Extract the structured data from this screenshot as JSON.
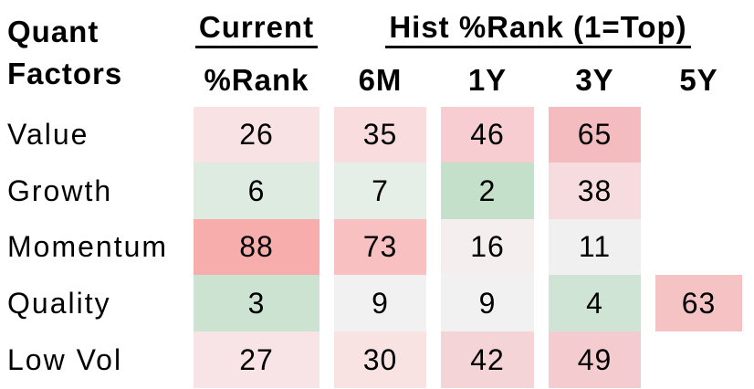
{
  "title": {
    "line1": "Quant",
    "line2": "Factors"
  },
  "chart_data": {
    "type": "heatmap",
    "title": "Quant Factors",
    "column_groups": [
      {
        "label": "Current",
        "columns": [
          "%Rank"
        ]
      },
      {
        "label": "Hist %Rank (1=Top)",
        "columns": [
          "6M",
          "1Y",
          "3Y",
          "5Y"
        ]
      }
    ],
    "columns": [
      "%Rank",
      "6M",
      "1Y",
      "3Y",
      "5Y"
    ],
    "rows": [
      {
        "label": "Value",
        "cells": [
          {
            "value": 26,
            "bg": "#f9e2e4"
          },
          {
            "value": 35,
            "bg": "#f8dcde"
          },
          {
            "value": 46,
            "bg": "#f7cdd1"
          },
          {
            "value": 65,
            "bg": "#f4bcbe"
          },
          {
            "value": null,
            "bg": null
          }
        ]
      },
      {
        "label": "Growth",
        "cells": [
          {
            "value": 6,
            "bg": "#deebe0"
          },
          {
            "value": 7,
            "bg": "#e5efe7"
          },
          {
            "value": 2,
            "bg": "#c4dfca"
          },
          {
            "value": 38,
            "bg": "#f6dcde"
          },
          {
            "value": null,
            "bg": null
          }
        ]
      },
      {
        "label": "Momentum",
        "cells": [
          {
            "value": 88,
            "bg": "#f8adad"
          },
          {
            "value": 73,
            "bg": "#f8c0c1"
          },
          {
            "value": 16,
            "bg": "#f4eeef"
          },
          {
            "value": 11,
            "bg": "#f1f0f1"
          },
          {
            "value": null,
            "bg": null
          }
        ]
      },
      {
        "label": "Quality",
        "cells": [
          {
            "value": 3,
            "bg": "#cce3d1"
          },
          {
            "value": 9,
            "bg": "#f2f1f2"
          },
          {
            "value": 9,
            "bg": "#f1f1f2"
          },
          {
            "value": 4,
            "bg": "#cfe4d4"
          },
          {
            "value": 63,
            "bg": "#f5c3c4"
          }
        ]
      },
      {
        "label": "Low Vol",
        "cells": [
          {
            "value": 27,
            "bg": "#f8e4e6"
          },
          {
            "value": 30,
            "bg": "#f8e2e2"
          },
          {
            "value": 42,
            "bg": "#f5d4d7"
          },
          {
            "value": 49,
            "bg": "#f4ccd0"
          },
          {
            "value": null,
            "bg": null
          }
        ]
      }
    ],
    "color_scale": {
      "low": "#c4dfca",
      "mid": "#f1f0f1",
      "high": "#f8adad",
      "note": "1=Top: low percentile ranks shaded green, high ranks shaded red"
    },
    "layout": {
      "grid": "off",
      "legend": "none",
      "value_range": [
        1,
        100
      ]
    }
  }
}
